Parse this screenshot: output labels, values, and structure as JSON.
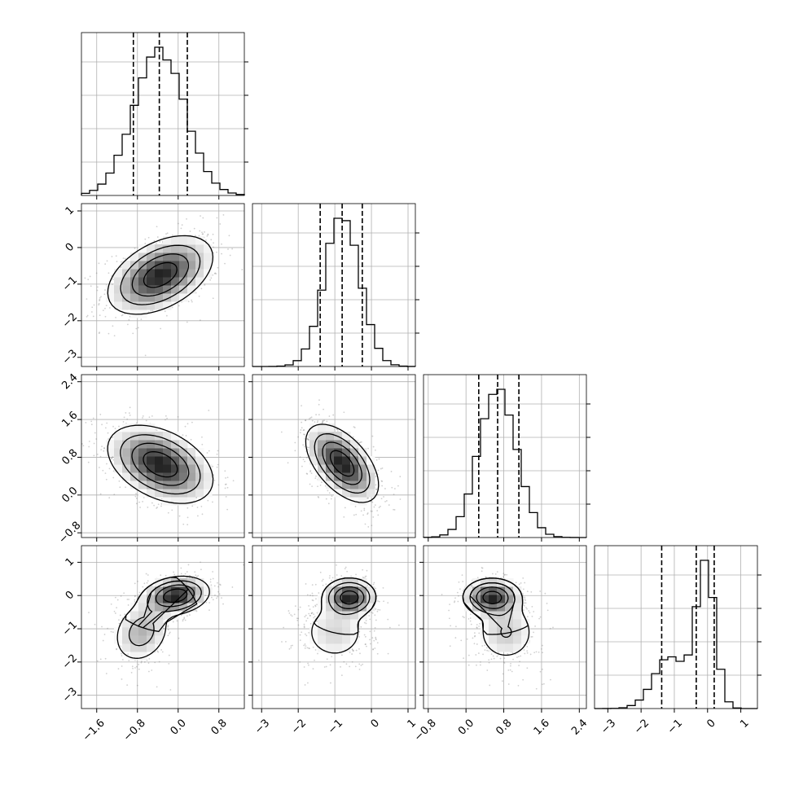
{
  "chart_data": {
    "type": "corner",
    "title": "",
    "n_params": 4,
    "params": [
      {
        "xlim": [
          -1.9,
          1.3
        ],
        "ticks": [
          -1.6,
          -0.8,
          0.0,
          0.8
        ],
        "tick_labels": [
          "−1.6",
          "−0.8",
          "0.0",
          "0.8"
        ],
        "quantiles": [
          -0.88,
          -0.37,
          0.18
        ]
      },
      {
        "xlim": [
          -3.25,
          1.2
        ],
        "ticks": [
          -3,
          -2,
          -1,
          0,
          1
        ],
        "tick_labels": [
          "−3",
          "−2",
          "−1",
          "0",
          "1"
        ],
        "quantiles": [
          -1.4,
          -0.8,
          -0.25
        ]
      },
      {
        "xlim": [
          -0.9,
          2.55
        ],
        "ticks": [
          -0.8,
          0.0,
          0.8,
          1.6,
          2.4
        ],
        "tick_labels": [
          "−0.8",
          "0.0",
          "0.8",
          "1.6",
          "2.4"
        ],
        "quantiles": [
          0.27,
          0.67,
          1.12
        ]
      },
      {
        "xlim": [
          -3.4,
          1.5
        ],
        "ticks": [
          -3,
          -2,
          -1,
          0,
          1
        ],
        "tick_labels": [
          "−3",
          "−2",
          "−1",
          "0",
          "1"
        ],
        "quantiles": [
          -1.38,
          -0.34,
          0.2
        ]
      }
    ],
    "histograms": [
      {
        "param": 0,
        "peak_centers": [
          -0.37
        ],
        "widths": [
          0.5
        ],
        "weights": [
          1.0
        ]
      },
      {
        "param": 1,
        "peak_centers": [
          -0.8
        ],
        "widths": [
          0.48
        ],
        "weights": [
          1.0
        ]
      },
      {
        "param": 2,
        "peak_centers": [
          0.67
        ],
        "widths": [
          0.4
        ],
        "weights": [
          1.0
        ]
      },
      {
        "param": 3,
        "peak_centers": [
          -0.05,
          -1.1
        ],
        "widths": [
          0.28,
          0.5
        ],
        "weights": [
          0.6,
          0.4
        ]
      }
    ],
    "pairs": [
      {
        "x_param": 0,
        "y_param": 1,
        "modes": [
          {
            "cx": -0.35,
            "cy": -0.75,
            "sx": 0.5,
            "sy": 0.52,
            "rho": 0.45,
            "w": 1.0
          }
        ]
      },
      {
        "x_param": 0,
        "y_param": 2,
        "modes": [
          {
            "cx": -0.35,
            "cy": 0.65,
            "sx": 0.5,
            "sy": 0.4,
            "rho": -0.4,
            "w": 1.0
          }
        ]
      },
      {
        "x_param": 1,
        "y_param": 2,
        "modes": [
          {
            "cx": -0.8,
            "cy": 0.67,
            "sx": 0.48,
            "sy": 0.4,
            "rho": -0.55,
            "w": 1.0
          }
        ]
      },
      {
        "x_param": 0,
        "y_param": 3,
        "modes": [
          {
            "cx": -0.05,
            "cy": 0.0,
            "sx": 0.32,
            "sy": 0.28,
            "rho": 0.2,
            "w": 0.6
          },
          {
            "cx": -0.72,
            "cy": -1.1,
            "sx": 0.3,
            "sy": 0.5,
            "rho": 0.2,
            "w": 0.4
          }
        ]
      },
      {
        "x_param": 1,
        "y_param": 3,
        "modes": [
          {
            "cx": -0.6,
            "cy": -0.05,
            "sx": 0.35,
            "sy": 0.28,
            "rho": 0.0,
            "w": 0.6
          },
          {
            "cx": -1.0,
            "cy": -1.1,
            "sx": 0.5,
            "sy": 0.5,
            "rho": 0.0,
            "w": 0.4
          }
        ]
      },
      {
        "x_param": 2,
        "y_param": 3,
        "modes": [
          {
            "cx": 0.55,
            "cy": -0.05,
            "sx": 0.3,
            "sy": 0.28,
            "rho": 0.0,
            "w": 0.6
          },
          {
            "cx": 0.85,
            "cy": -1.1,
            "sx": 0.35,
            "sy": 0.5,
            "rho": 0.0,
            "w": 0.4
          }
        ]
      }
    ],
    "grid": true,
    "colors": {
      "line": "#000000",
      "grid": "#b0b0b0",
      "density_scale": "greys"
    }
  }
}
